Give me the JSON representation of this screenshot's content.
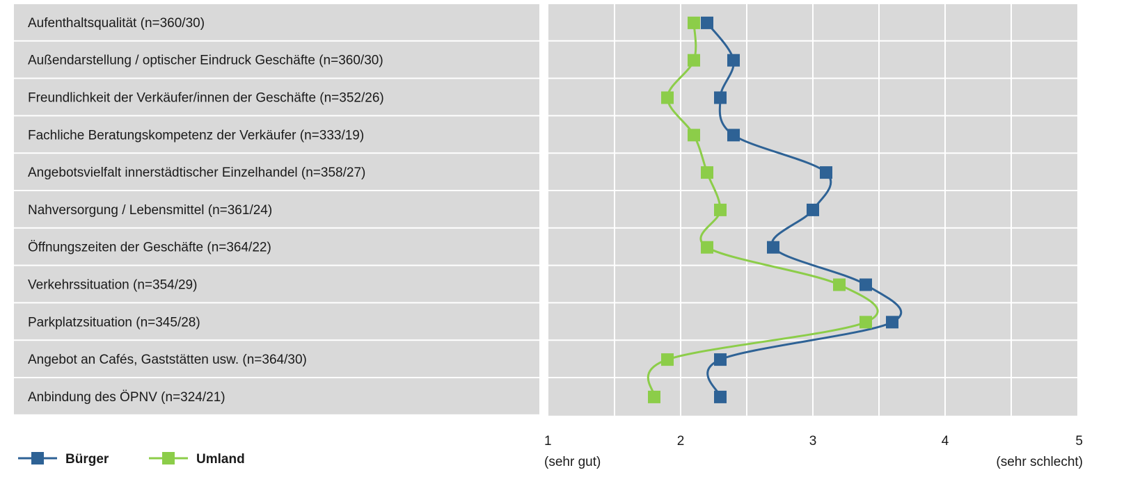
{
  "chart_data": {
    "type": "line",
    "orientation": "horizontal-values",
    "categories": [
      "Aufenthaltsqualität (n=360/30)",
      "Außendarstellung / optischer Eindruck Geschäfte  (n=360/30)",
      "Freundlichkeit der Verkäufer/innen der Geschäfte (n=352/26)",
      "Fachliche Beratungskompetenz der Verkäufer (n=333/19)",
      "Angebotsvielfalt innerstädtischer Einzelhandel (n=358/27)",
      "Nahversorgung / Lebensmittel (n=361/24)",
      "Öffnungszeiten der Geschäfte (n=364/22)",
      "Verkehrssituation (n=354/29)",
      "Parkplatzsituation (n=345/28)",
      "Angebot an Cafés, Gaststätten usw. (n=364/30)",
      "Anbindung des ÖPNV (n=324/21)"
    ],
    "series": [
      {
        "name": "Bürger",
        "color": "#2e6295",
        "values": [
          2.2,
          2.4,
          2.3,
          2.4,
          3.1,
          3.0,
          2.7,
          3.4,
          3.6,
          2.3,
          2.3
        ]
      },
      {
        "name": "Umland",
        "color": "#8ccd49",
        "values": [
          2.1,
          2.1,
          1.9,
          2.1,
          2.2,
          2.3,
          2.2,
          3.2,
          3.4,
          1.9,
          1.8
        ]
      }
    ],
    "xlim": [
      1,
      5
    ],
    "x_ticks": [
      "1",
      "2",
      "3",
      "4",
      "5"
    ],
    "x_tick_sublabels": {
      "1": "(sehr gut)",
      "5": "(sehr schlecht)"
    },
    "grid": true,
    "smooth": true,
    "marker": "square",
    "legend_position": "bottom-left",
    "background_color": "#d9d9d9",
    "gridline_color": "#ffffff"
  }
}
